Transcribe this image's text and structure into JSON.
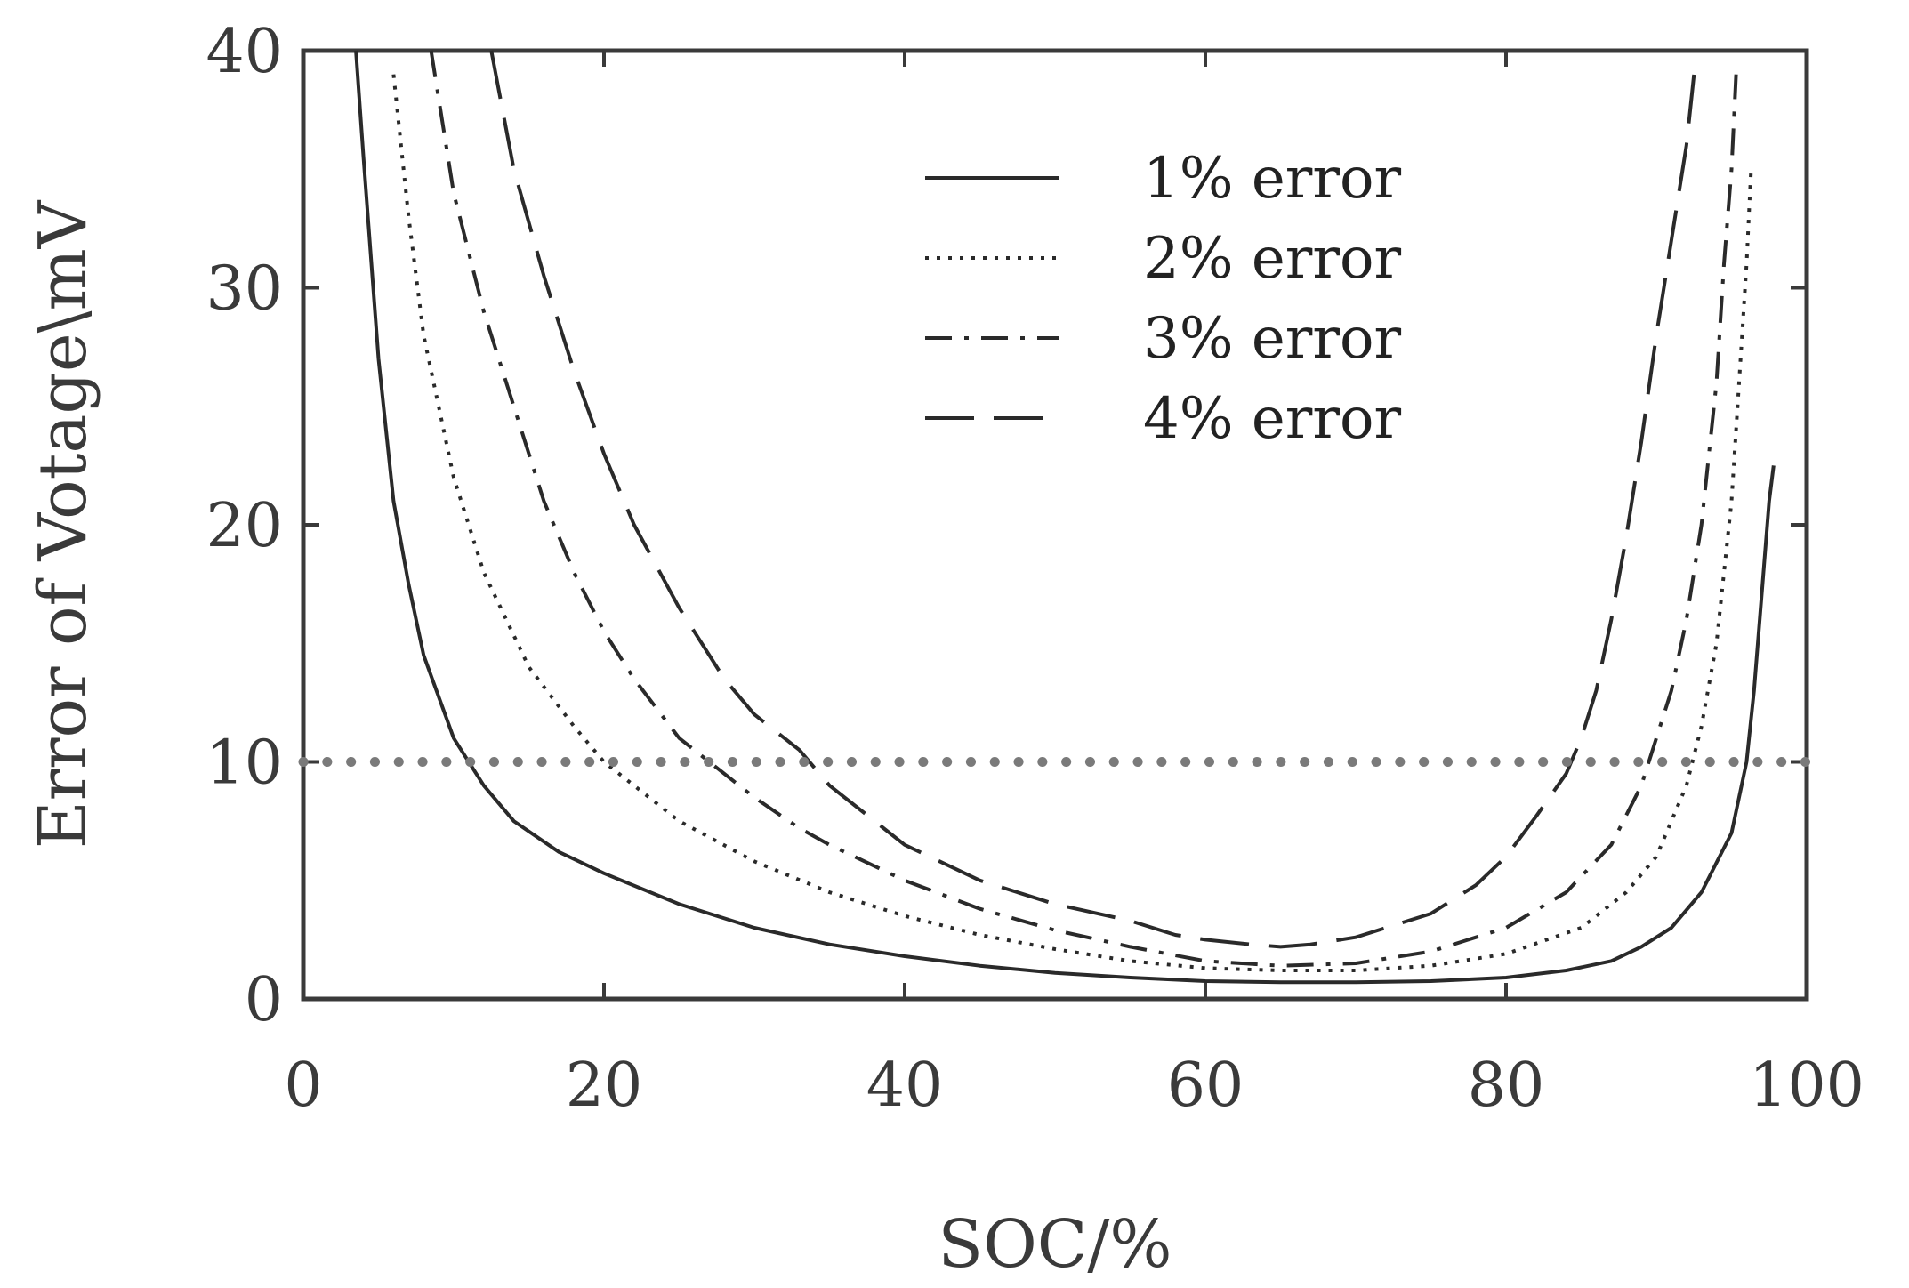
{
  "chart_data": {
    "type": "line",
    "title": "",
    "xlabel": "SOC/%",
    "ylabel": "Error of Votage\\mV",
    "xlim": [
      0,
      100
    ],
    "ylim": [
      0,
      40
    ],
    "xticks": [
      0,
      20,
      40,
      60,
      80,
      100
    ],
    "yticks": [
      0,
      10,
      20,
      30,
      40
    ],
    "xtick_labels": [
      "0",
      "20",
      "40",
      "60",
      "80",
      "100"
    ],
    "ytick_labels": [
      "0",
      "10",
      "20",
      "30",
      "40"
    ],
    "grid": false,
    "legend_position": "top-center",
    "series": [
      {
        "name": "1% error",
        "style": "solid",
        "x": [
          3.5,
          4,
          5,
          6,
          7,
          8,
          10,
          12,
          14,
          17,
          20,
          25,
          30,
          35,
          40,
          45,
          50,
          55,
          60,
          65,
          70,
          75,
          80,
          84,
          87,
          89,
          91,
          93,
          95,
          96,
          96.5,
          97,
          97.5,
          97.8
        ],
        "y": [
          40,
          35.5,
          27,
          21,
          17.5,
          14.5,
          11,
          9,
          7.5,
          6.2,
          5.3,
          4,
          3,
          2.3,
          1.8,
          1.4,
          1.1,
          0.9,
          0.75,
          0.7,
          0.7,
          0.75,
          0.9,
          1.2,
          1.6,
          2.2,
          3,
          4.5,
          7,
          10,
          13,
          17,
          21,
          22.5
        ]
      },
      {
        "name": "2% error",
        "style": "dotted",
        "x": [
          6,
          7,
          8,
          10,
          12,
          15,
          18,
          20,
          25,
          30,
          35,
          40,
          45,
          50,
          55,
          60,
          65,
          70,
          75,
          80,
          85,
          88,
          90,
          92,
          93,
          94,
          95,
          95.5,
          96,
          96.3
        ],
        "y": [
          39,
          33,
          28,
          22,
          18,
          14,
          11.5,
          10,
          7.5,
          5.8,
          4.5,
          3.5,
          2.7,
          2.1,
          1.6,
          1.3,
          1.2,
          1.2,
          1.4,
          1.9,
          3,
          4.5,
          6,
          9,
          11.5,
          15,
          21,
          26,
          31,
          35
        ]
      },
      {
        "name": "3% error",
        "style": "dashdot",
        "x": [
          8.5,
          10,
          12,
          14,
          16,
          18,
          20,
          22,
          25,
          28,
          30,
          33,
          35,
          40,
          45,
          50,
          55,
          60,
          65,
          70,
          75,
          80,
          84,
          87,
          89,
          91,
          92,
          93,
          94,
          94.5,
          95,
          95.3
        ],
        "y": [
          40,
          34,
          29,
          25,
          21,
          18,
          15.5,
          13.5,
          11,
          9.5,
          8.5,
          7.2,
          6.5,
          5,
          3.8,
          2.9,
          2.2,
          1.6,
          1.4,
          1.5,
          2,
          3,
          4.5,
          6.5,
          9,
          13,
          16,
          20,
          26,
          31,
          35,
          39
        ]
      },
      {
        "name": "4% error",
        "style": "dashed",
        "x": [
          12.5,
          14,
          16,
          18,
          20,
          22,
          25,
          28,
          30,
          33,
          35,
          40,
          45,
          50,
          55,
          58,
          60,
          63,
          65,
          67,
          70,
          75,
          78,
          80,
          82,
          84,
          85,
          86,
          87,
          88,
          89,
          90,
          91,
          92,
          92.5
        ],
        "y": [
          40,
          35,
          30.5,
          26.5,
          23,
          20,
          16.5,
          13.5,
          12,
          10.5,
          9,
          6.5,
          5,
          4,
          3.3,
          2.7,
          2.5,
          2.3,
          2.2,
          2.3,
          2.6,
          3.6,
          4.8,
          6,
          7.7,
          9.5,
          11,
          13,
          16,
          19.5,
          23.5,
          28,
          32,
          36,
          39
        ]
      },
      {
        "name": "",
        "style": "dotted-reference",
        "x": [
          0,
          100
        ],
        "y": [
          10,
          10
        ]
      }
    ]
  }
}
